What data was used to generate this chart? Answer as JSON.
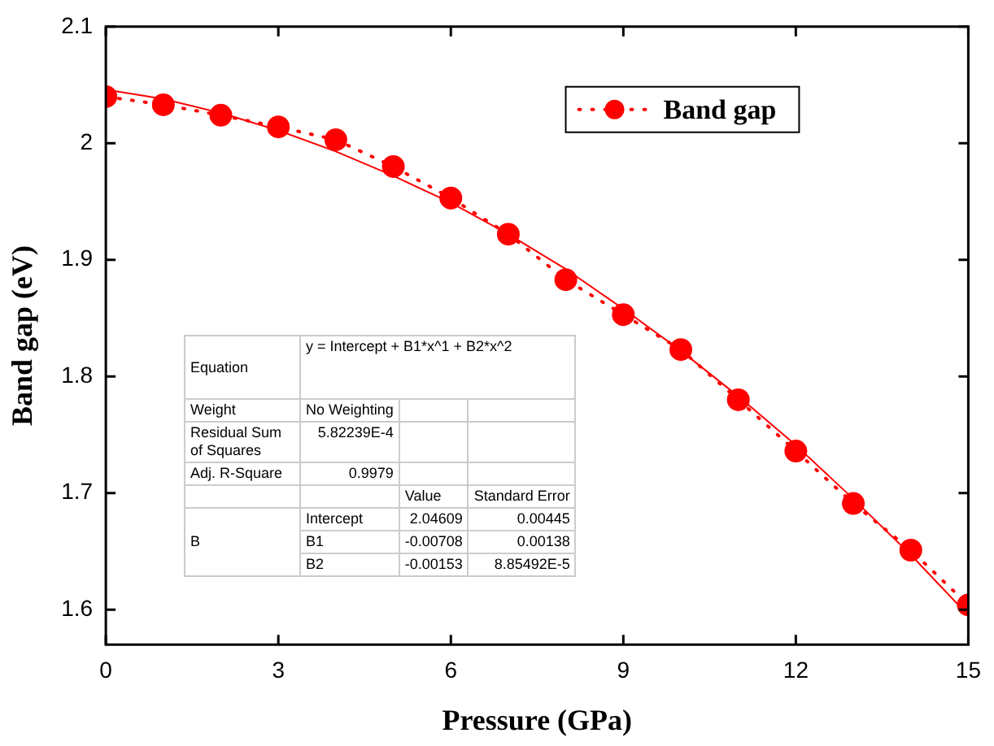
{
  "chart_data": {
    "type": "line",
    "xlabel": "Pressure (GPa)",
    "ylabel": "Band gap (eV)",
    "xlim": [
      0,
      15
    ],
    "xticks": [
      0,
      3,
      6,
      9,
      12,
      15
    ],
    "ylim": [
      1.57,
      2.1
    ],
    "yticks": [
      1.6,
      1.7,
      1.8,
      1.9,
      2.0,
      2.1
    ],
    "legend": "top right",
    "grid": false,
    "x": [
      0,
      1,
      2,
      3,
      4,
      5,
      6,
      7,
      8,
      9,
      10,
      11,
      12,
      13,
      14,
      15
    ],
    "series": [
      {
        "name": "Band gap",
        "color": "#ff0000",
        "marker": "circle",
        "line_style": "dotted",
        "values": [
          2.04,
          2.033,
          2.024,
          2.014,
          2.003,
          1.98,
          1.953,
          1.922,
          1.883,
          1.853,
          1.823,
          1.78,
          1.736,
          1.691,
          1.651,
          1.604
        ]
      },
      {
        "color": "#ff0000",
        "marker": "none",
        "line_style": "solid",
        "values": [
          2.046,
          2.038,
          2.026,
          2.011,
          1.993,
          1.972,
          1.949,
          1.922,
          1.892,
          1.858,
          1.822,
          1.783,
          1.741,
          1.695,
          1.647,
          1.595
        ]
      }
    ],
    "annotations": [
      "Equation",
      "y = Intercept + B1*x^1 + B2*x^2",
      "Weight",
      "No Weighting",
      "Residual Sum of Squares",
      "5.82239E-4",
      "Adj. R-Square",
      "0.9979",
      "Value",
      "Standard Error",
      "B",
      "Intercept",
      "2.04609",
      "0.00445",
      "B1",
      "-0.00708",
      "0.00138",
      "B2",
      "-0.00153",
      "8.85492E-5"
    ]
  }
}
